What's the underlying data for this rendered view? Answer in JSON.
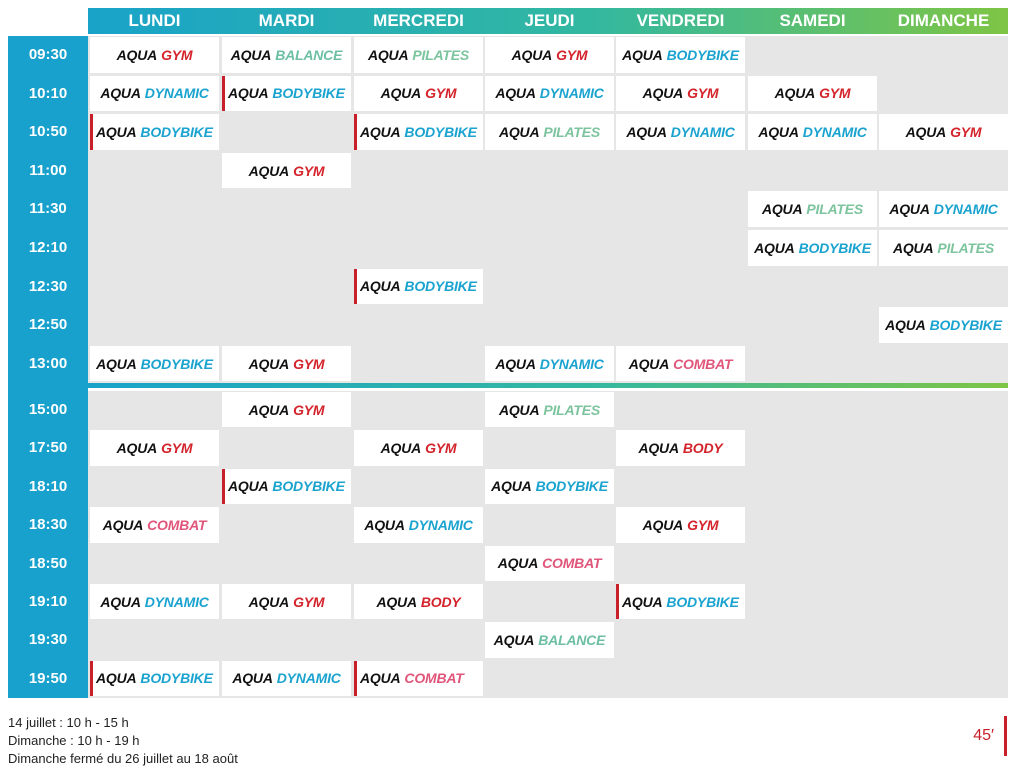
{
  "schedule": {
    "days": [
      "LUNDI",
      "MARDI",
      "MERCREDI",
      "JEUDI",
      "VENDREDI",
      "SAMEDI",
      "DIMANCHE"
    ],
    "colors": {
      "GYM": "#d4232b",
      "BALANCE": "#6cbfa3",
      "PILATES": "#7cc49e",
      "BODYBIKE": "#1aa3cf",
      "DYNAMIC": "#1aa3cf",
      "COMBAT": "#e0567a",
      "BODY": "#d4232b"
    },
    "blocks": [
      {
        "rows": [
          {
            "time": "09:30",
            "cells": [
              {
                "brand": "AQUA",
                "name": "GYM"
              },
              {
                "brand": "AQUA",
                "name": "BALANCE"
              },
              {
                "brand": "AQUA",
                "name": "PILATES"
              },
              {
                "brand": "AQUA",
                "name": "GYM"
              },
              {
                "brand": "AQUA",
                "name": "BODYBIKE"
              },
              null,
              null
            ]
          },
          {
            "time": "10:10",
            "cells": [
              {
                "brand": "AQUA",
                "name": "DYNAMIC"
              },
              {
                "brand": "AQUA",
                "name": "BODYBIKE",
                "marked": true
              },
              {
                "brand": "AQUA",
                "name": "GYM"
              },
              {
                "brand": "AQUA",
                "name": "DYNAMIC"
              },
              {
                "brand": "AQUA",
                "name": "GYM"
              },
              {
                "brand": "AQUA",
                "name": "GYM"
              },
              null
            ]
          },
          {
            "time": "10:50",
            "cells": [
              {
                "brand": "AQUA",
                "name": "BODYBIKE",
                "marked": true
              },
              null,
              {
                "brand": "AQUA",
                "name": "BODYBIKE",
                "marked": true
              },
              {
                "brand": "AQUA",
                "name": "PILATES"
              },
              {
                "brand": "AQUA",
                "name": "DYNAMIC"
              },
              {
                "brand": "AQUA",
                "name": "DYNAMIC"
              },
              {
                "brand": "AQUA",
                "name": "GYM"
              }
            ]
          },
          {
            "time": "11:00",
            "cells": [
              null,
              {
                "brand": "AQUA",
                "name": "GYM"
              },
              null,
              null,
              null,
              null,
              null
            ]
          },
          {
            "time": "11:30",
            "cells": [
              null,
              null,
              null,
              null,
              null,
              {
                "brand": "AQUA",
                "name": "PILATES"
              },
              {
                "brand": "AQUA",
                "name": "DYNAMIC"
              }
            ]
          },
          {
            "time": "12:10",
            "cells": [
              null,
              null,
              null,
              null,
              null,
              {
                "brand": "AQUA",
                "name": "BODYBIKE"
              },
              {
                "brand": "AQUA",
                "name": "PILATES"
              }
            ]
          },
          {
            "time": "12:30",
            "cells": [
              null,
              null,
              {
                "brand": "AQUA",
                "name": "BODYBIKE",
                "marked": true
              },
              null,
              null,
              null,
              null
            ]
          },
          {
            "time": "12:50",
            "cells": [
              null,
              null,
              null,
              null,
              null,
              null,
              {
                "brand": "AQUA",
                "name": "BODYBIKE"
              }
            ]
          },
          {
            "time": "13:00",
            "cells": [
              {
                "brand": "AQUA",
                "name": "BODYBIKE"
              },
              {
                "brand": "AQUA",
                "name": "GYM"
              },
              null,
              {
                "brand": "AQUA",
                "name": "DYNAMIC"
              },
              {
                "brand": "AQUA",
                "name": "COMBAT"
              },
              null,
              null
            ]
          }
        ]
      },
      {
        "rows": [
          {
            "time": "15:00",
            "cells": [
              null,
              {
                "brand": "AQUA",
                "name": "GYM"
              },
              null,
              {
                "brand": "AQUA",
                "name": "PILATES"
              },
              null,
              null,
              null
            ]
          },
          {
            "time": "17:50",
            "cells": [
              {
                "brand": "AQUA",
                "name": "GYM"
              },
              null,
              {
                "brand": "AQUA",
                "name": "GYM"
              },
              null,
              {
                "brand": "AQUA",
                "name": "BODY"
              },
              null,
              null
            ]
          },
          {
            "time": "18:10",
            "cells": [
              null,
              {
                "brand": "AQUA",
                "name": "BODYBIKE",
                "marked": true
              },
              null,
              {
                "brand": "AQUA",
                "name": "BODYBIKE"
              },
              null,
              null,
              null
            ]
          },
          {
            "time": "18:30",
            "cells": [
              {
                "brand": "AQUA",
                "name": "COMBAT"
              },
              null,
              {
                "brand": "AQUA",
                "name": "DYNAMIC"
              },
              null,
              {
                "brand": "AQUA",
                "name": "GYM"
              },
              null,
              null
            ]
          },
          {
            "time": "18:50",
            "cells": [
              null,
              null,
              null,
              {
                "brand": "AQUA",
                "name": "COMBAT"
              },
              null,
              null,
              null
            ]
          },
          {
            "time": "19:10",
            "cells": [
              {
                "brand": "AQUA",
                "name": "DYNAMIC"
              },
              {
                "brand": "AQUA",
                "name": "GYM"
              },
              {
                "brand": "AQUA",
                "name": "BODY"
              },
              null,
              {
                "brand": "AQUA",
                "name": "BODYBIKE",
                "marked": true
              },
              null,
              null
            ]
          },
          {
            "time": "19:30",
            "cells": [
              null,
              null,
              null,
              {
                "brand": "AQUA",
                "name": "BALANCE"
              },
              null,
              null,
              null
            ]
          },
          {
            "time": "19:50",
            "cells": [
              {
                "brand": "AQUA",
                "name": "BODYBIKE",
                "marked": true
              },
              {
                "brand": "AQUA",
                "name": "DYNAMIC"
              },
              {
                "brand": "AQUA",
                "name": "COMBAT",
                "marked": true
              },
              null,
              null,
              null,
              null
            ]
          }
        ]
      }
    ]
  },
  "footer": {
    "notes": [
      "14 juillet : 10 h - 15 h",
      "Dimanche : 10 h - 19 h",
      "Dimanche fermé du 26 juillet au 18 août"
    ],
    "duration": "45′"
  }
}
